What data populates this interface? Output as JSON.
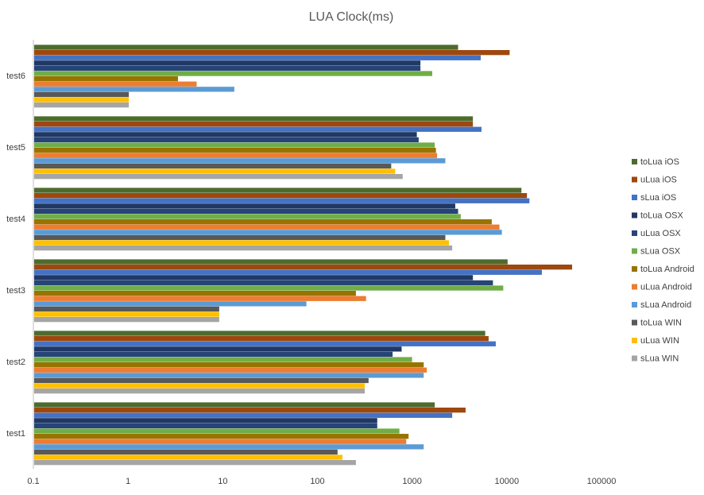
{
  "chart_data": {
    "type": "bar",
    "orientation": "horizontal",
    "title": "LUA Clock(ms)",
    "xlabel": "",
    "ylabel": "",
    "x_scale": "log",
    "xlim": [
      0.1,
      100000
    ],
    "x_ticks": [
      "0.1",
      "1",
      "10",
      "100",
      "1000",
      "10000",
      "100000"
    ],
    "grid": false,
    "legend_position": "right",
    "categories": [
      "test1",
      "test2",
      "test3",
      "test4",
      "test5",
      "test6"
    ],
    "series": [
      {
        "name": "toLua iOS",
        "color": "#4e6b2d",
        "values": [
          1700,
          5800,
          10000,
          14000,
          4300,
          3000
        ]
      },
      {
        "name": "uLua iOS",
        "color": "#9e480e",
        "values": [
          3600,
          6300,
          48000,
          16000,
          4300,
          10500
        ]
      },
      {
        "name": "sLua iOS",
        "color": "#4472c4",
        "values": [
          2600,
          7500,
          23000,
          17000,
          5300,
          5200
        ]
      },
      {
        "name": "toLua OSX",
        "color": "#203864",
        "values": [
          420,
          760,
          4300,
          2800,
          1100,
          1200
        ]
      },
      {
        "name": "uLua OSX",
        "color": "#264478",
        "values": [
          420,
          610,
          7000,
          3000,
          1150,
          1200
        ]
      },
      {
        "name": "sLua OSX",
        "color": "#70ad47",
        "values": [
          720,
          980,
          9000,
          3200,
          1700,
          1600
        ]
      },
      {
        "name": "toLua Android",
        "color": "#997300",
        "values": [
          900,
          1300,
          250,
          6800,
          1750,
          3.3
        ]
      },
      {
        "name": "uLua Android",
        "color": "#ed7d31",
        "values": [
          850,
          1400,
          320,
          8200,
          1800,
          5.2
        ]
      },
      {
        "name": "sLua Android",
        "color": "#5b9bd5",
        "values": [
          1300,
          1300,
          75,
          8700,
          2200,
          13
        ]
      },
      {
        "name": "toLua WIN",
        "color": "#595959",
        "values": [
          160,
          340,
          9,
          2200,
          590,
          1
        ]
      },
      {
        "name": "uLua WIN",
        "color": "#ffc000",
        "values": [
          180,
          310,
          9,
          2400,
          650,
          1
        ]
      },
      {
        "name": "sLua WIN",
        "color": "#a5a5a5",
        "values": [
          250,
          310,
          9,
          2600,
          780,
          1
        ]
      }
    ]
  }
}
